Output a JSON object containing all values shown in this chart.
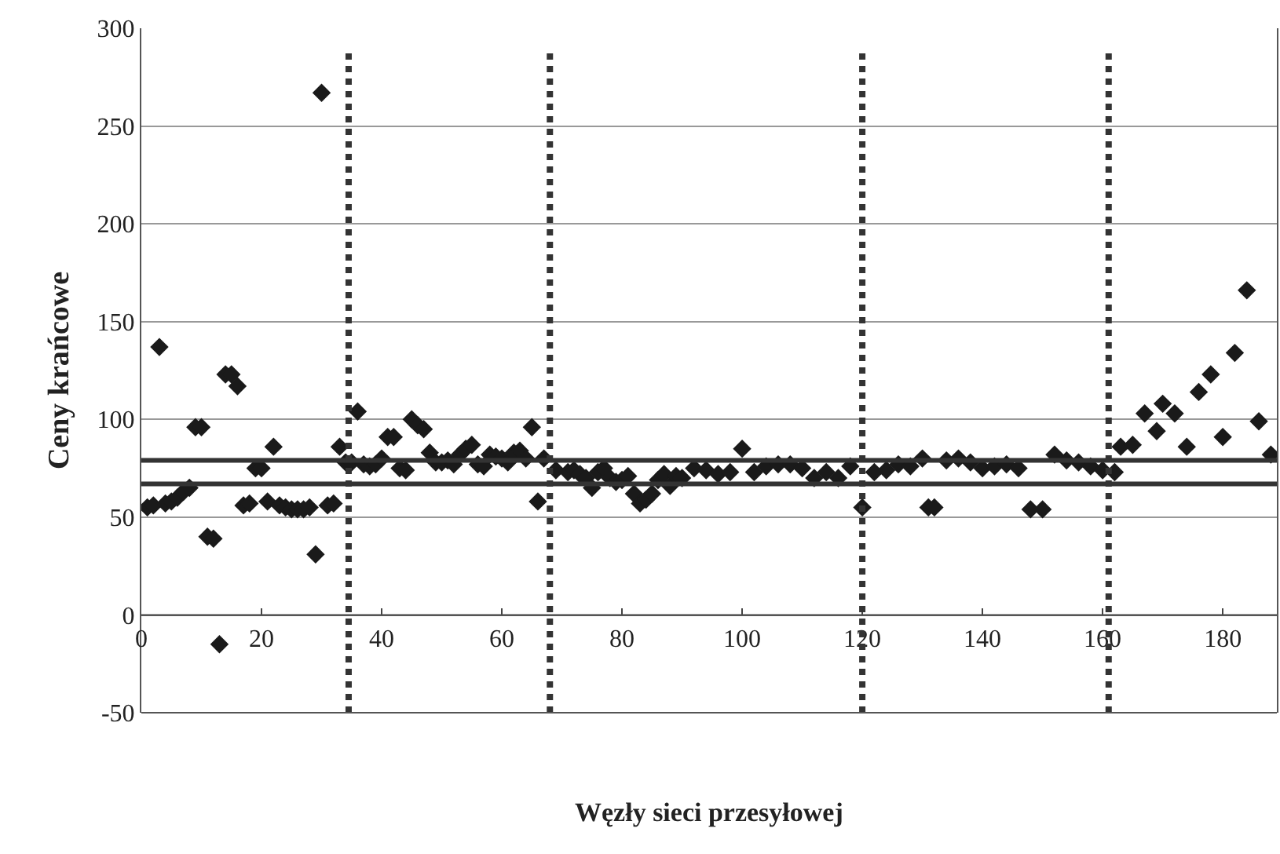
{
  "chart_data": {
    "type": "scatter",
    "xlabel": "Węzły sieci przesyłowej",
    "ylabel": "Ceny krańcowe",
    "xlim": [
      0,
      189
    ],
    "ylim": [
      -50,
      300
    ],
    "xticks": [
      {
        "value": 0,
        "label": "0"
      },
      20,
      40,
      60,
      80,
      100,
      120,
      140,
      160,
      180
    ],
    "yticks": [
      -50,
      0,
      50,
      100,
      150,
      200,
      250,
      300
    ],
    "grid": "y",
    "marker": "diamond",
    "series": [
      {
        "color": "#1a1a1a",
        "x": [
          1,
          2,
          3,
          4,
          5,
          6,
          7,
          8,
          9,
          10,
          11,
          12,
          13,
          14,
          15,
          16,
          17,
          18,
          19,
          20,
          21,
          22,
          23,
          24,
          25,
          26,
          27,
          28,
          29,
          30,
          31,
          32,
          33,
          34,
          35,
          36,
          37,
          38,
          39,
          40,
          41,
          42,
          43,
          44,
          45,
          46,
          47,
          48,
          49,
          50,
          51,
          52,
          53,
          54,
          55,
          56,
          57,
          58,
          59,
          60,
          61,
          62,
          63,
          64,
          65,
          66,
          67,
          69,
          71,
          72,
          73,
          74,
          75,
          76,
          77,
          78,
          79,
          80,
          81,
          82,
          83,
          84,
          85,
          86,
          87,
          88,
          89,
          90,
          92,
          94,
          96,
          98,
          100,
          102,
          104,
          106,
          108,
          110,
          112,
          114,
          116,
          118,
          120,
          122,
          124,
          126,
          128,
          130,
          131,
          132,
          134,
          136,
          138,
          140,
          142,
          144,
          146,
          148,
          150,
          152,
          154,
          156,
          158,
          160,
          162,
          163,
          165,
          167,
          169,
          170,
          172,
          174,
          176,
          178,
          180,
          182,
          184,
          186,
          188
        ],
        "values": [
          55,
          56,
          137,
          57,
          58,
          60,
          63,
          65,
          96,
          96,
          40,
          39,
          -15,
          123,
          123,
          117,
          56,
          57,
          75,
          75,
          58,
          86,
          56,
          55,
          54,
          54,
          54,
          55,
          31,
          267,
          56,
          57,
          86,
          78,
          78,
          104,
          77,
          76,
          77,
          80,
          91,
          91,
          75,
          74,
          100,
          97,
          95,
          83,
          78,
          78,
          79,
          77,
          82,
          85,
          87,
          77,
          76,
          82,
          81,
          80,
          78,
          83,
          84,
          80,
          96,
          58,
          80,
          74,
          73,
          74,
          72,
          70,
          65,
          73,
          75,
          70,
          68,
          69,
          71,
          62,
          57,
          59,
          62,
          69,
          72,
          66,
          71,
          70,
          75,
          74,
          72,
          73,
          85,
          73,
          76,
          77,
          77,
          75,
          70,
          73,
          70,
          76,
          55,
          73,
          74,
          77,
          76,
          80,
          55,
          55,
          79,
          80,
          78,
          75,
          76,
          77,
          75,
          54,
          54,
          82,
          79,
          78,
          76,
          74,
          73,
          86,
          87,
          103,
          94,
          108,
          103,
          86,
          114,
          123,
          91,
          134,
          166,
          99,
          82
        ]
      }
    ],
    "ref_lines": [
      {
        "axis": "y",
        "value": 79,
        "color": "#333333",
        "line_style": "solid"
      },
      {
        "axis": "y",
        "value": 67,
        "color": "#333333",
        "line_style": "solid"
      },
      {
        "axis": "x",
        "value": 34.5,
        "color": "#333333",
        "line_style": "dotted"
      },
      {
        "axis": "x",
        "value": 68,
        "color": "#333333",
        "line_style": "dotted"
      },
      {
        "axis": "x",
        "value": 120,
        "color": "#333333",
        "line_style": "dotted"
      },
      {
        "axis": "x",
        "value": 161,
        "color": "#333333",
        "line_style": "dotted"
      }
    ]
  }
}
